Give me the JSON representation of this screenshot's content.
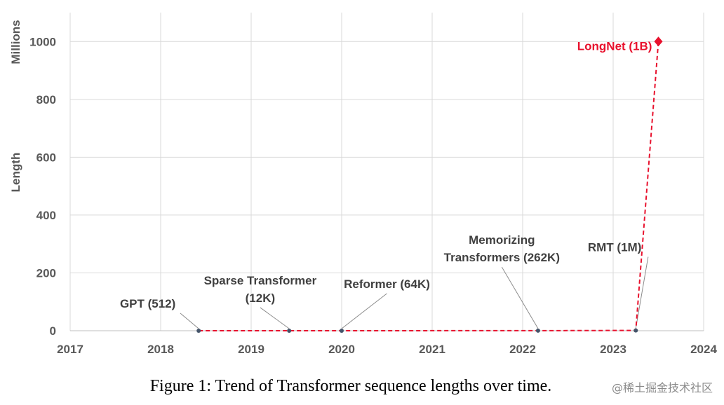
{
  "chart_data": {
    "type": "line",
    "xlabel": "",
    "ylabel_top": "Millions",
    "ylabel": "Length",
    "xlim": [
      2017,
      2024
    ],
    "ylim": [
      0,
      1100
    ],
    "xticks": [
      2017,
      2018,
      2019,
      2020,
      2021,
      2022,
      2023,
      2024
    ],
    "yticks": [
      0,
      200,
      400,
      600,
      800,
      1000
    ],
    "grid": true,
    "series_color": "#e8112d",
    "marker_color": "#44546a",
    "points": [
      {
        "x": 2018.42,
        "y": 0.000512,
        "label": [
          "GPT (512)"
        ],
        "lx": 2017.55,
        "ly": 80,
        "anchor": "start"
      },
      {
        "x": 2019.42,
        "y": 0.012,
        "label": [
          "Sparse Transformer",
          "(12K)"
        ],
        "lx": 2019.1,
        "ly": 160,
        "anchor": "middle"
      },
      {
        "x": 2020.0,
        "y": 0.064,
        "label": [
          "Reformer (64K)"
        ],
        "lx": 2020.5,
        "ly": 148,
        "anchor": "middle"
      },
      {
        "x": 2022.17,
        "y": 0.262,
        "label": [
          "Memorizing",
          "Transformers (262K)"
        ],
        "lx": 2021.77,
        "ly": 300,
        "anchor": "middle"
      },
      {
        "x": 2023.25,
        "y": 1,
        "label": [
          "RMT (1M)"
        ],
        "lx": 2022.72,
        "ly": 275,
        "anchor": "start"
      },
      {
        "x": 2023.5,
        "y": 1000,
        "label": [
          "LongNet (1B)"
        ],
        "lx": 2023.43,
        "ly": 970,
        "anchor": "end",
        "highlight": true
      }
    ]
  },
  "caption": "Figure 1: Trend of Transformer sequence lengths over time.",
  "watermark": "@稀土掘金技术社区"
}
